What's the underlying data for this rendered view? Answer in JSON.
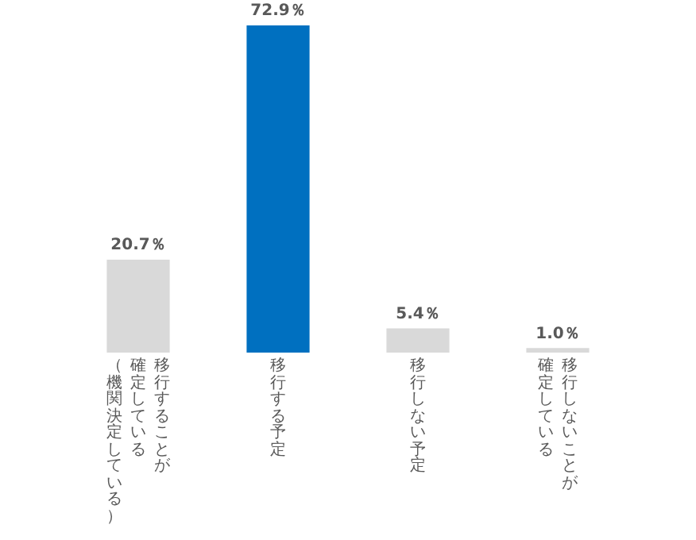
{
  "chart_data": {
    "type": "bar",
    "categories": [
      "移行することが確定している（機関決定している）",
      "移行する予定",
      "移行しない予定",
      "移行しないことが確定している"
    ],
    "values": [
      20.7,
      72.9,
      5.4,
      1.0
    ],
    "colors": [
      "#d9d9d9",
      "#0070c0",
      "#d9d9d9",
      "#d9d9d9"
    ],
    "value_labels": [
      "20.7％",
      "72.9％",
      "5.4％",
      "1.0％"
    ],
    "grid": false,
    "legend": false
  }
}
